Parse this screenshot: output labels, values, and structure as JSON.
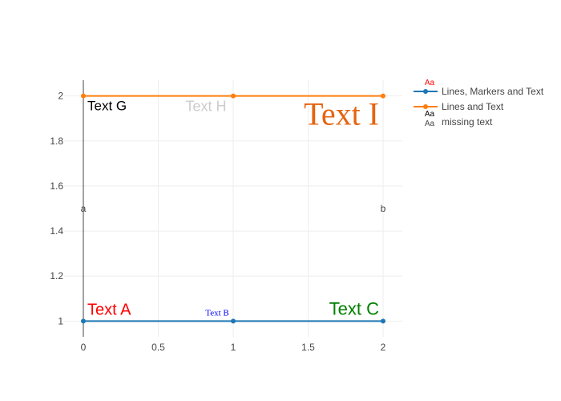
{
  "colors": {
    "series_blue": "#1f77b4",
    "series_orange": "#ff7f0e",
    "grid": "#eeeeee",
    "axis_line": "#444444",
    "tick_text": "#444444"
  },
  "chart_data": {
    "type": "line",
    "title": "",
    "xlabel": "",
    "ylabel": "",
    "xlim": [
      0,
      2
    ],
    "ylim": [
      0.93,
      2.07
    ],
    "x_ticks": [
      "0",
      "0.5",
      "1",
      "1.5",
      "2"
    ],
    "y_ticks": [
      "1",
      "1.2",
      "1.4",
      "1.6",
      "1.8",
      "2"
    ],
    "grid": true,
    "legend_position": "top-right",
    "series": [
      {
        "name": "Lines, Markers and Text",
        "color": "#1f77b4",
        "mode": "lines+markers+text",
        "x": [
          0,
          1,
          2
        ],
        "y": [
          1,
          1,
          1
        ],
        "text": [
          "Text A",
          "Text B",
          "Text C"
        ],
        "text_colors": [
          "#ff0000",
          "#0000ff",
          "#008000"
        ],
        "legend_swatch_text": "Aa",
        "legend_swatch_color": "#ff0000"
      },
      {
        "name": "Lines and Text",
        "color": "#ff7f0e",
        "mode": "lines+markers+text",
        "x": [
          0,
          1,
          2
        ],
        "y": [
          2,
          2,
          2
        ],
        "text": [
          "Text G",
          "Text H",
          "Text I"
        ],
        "text_colors": [
          "#000000",
          "#cccccc",
          "#e5640f"
        ],
        "legend_swatch_text": "Aa",
        "legend_swatch_color": "#000000"
      },
      {
        "name": "missing text",
        "color": "#444444",
        "mode": "text",
        "x": [
          0,
          2
        ],
        "y": [
          1.5,
          1.5
        ],
        "text": [
          "a",
          "b"
        ],
        "text_colors": [
          "#444444",
          "#444444"
        ],
        "legend_swatch_text": "Aa",
        "legend_swatch_color": "#444444"
      }
    ]
  }
}
